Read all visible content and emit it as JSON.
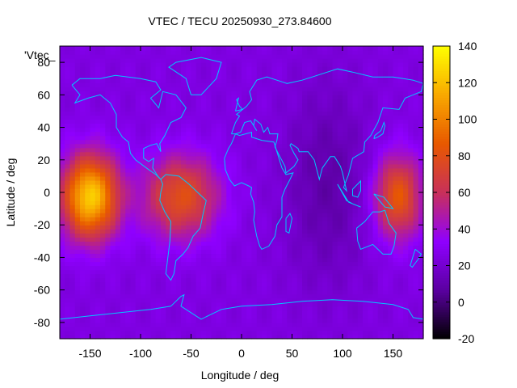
{
  "chart_data": {
    "type": "heatmap",
    "title": "VTEC / TECU 20250930_273.84600",
    "xlabel": "Longitude / deg",
    "ylabel": "Latitude / deg",
    "legend_label": "'Vtec_",
    "xlim": [
      -180,
      180
    ],
    "ylim": [
      -90,
      90
    ],
    "x_ticks": [
      -150,
      -100,
      -50,
      0,
      50,
      100,
      150
    ],
    "y_ticks": [
      -80,
      -60,
      -40,
      -20,
      0,
      20,
      40,
      60,
      80
    ],
    "x_tick_labels": [
      "-150",
      "-100",
      "-50",
      "0",
      "50",
      "100",
      "150"
    ],
    "y_tick_labels": [
      "-80",
      "-60",
      "-40",
      "-20",
      "0",
      "20",
      "40",
      "60",
      "80"
    ],
    "colorbar": {
      "range": [
        -20,
        140
      ],
      "ticks": [
        -20,
        0,
        20,
        40,
        60,
        80,
        100,
        120,
        140
      ],
      "tick_labels": [
        "-20",
        "0",
        "20",
        "40",
        "60",
        "80",
        "100",
        "120",
        "140"
      ],
      "colormap": [
        "#000000",
        "#5a00a0",
        "#8f00ff",
        "#c8305a",
        "#e85800",
        "#f8a800",
        "#ffff00"
      ]
    },
    "grid": false,
    "features": [
      {
        "description": "equatorial ionization anomaly over Pacific",
        "lon": [
          -180,
          -120
        ],
        "lat": [
          -30,
          25
        ],
        "peak_tecu": 125
      },
      {
        "description": "high TEC band over South America / Atlantic",
        "lon": [
          -100,
          -20
        ],
        "lat": [
          -30,
          25
        ],
        "peak_tecu": 80
      },
      {
        "description": "elevated TEC over western Pacific / Australia",
        "lon": [
          130,
          180
        ],
        "lat": [
          -30,
          25
        ],
        "peak_tecu": 85
      },
      {
        "description": "low TEC over Asia and Indian Ocean",
        "lon": [
          40,
          130
        ],
        "lat": [
          -60,
          70
        ],
        "min_tecu": 5
      },
      {
        "description": "mid-level background",
        "lon": [
          -180,
          180
        ],
        "lat": [
          -90,
          90
        ],
        "typical_tecu": 25
      }
    ],
    "coastlines_color": "#00c8ff"
  }
}
